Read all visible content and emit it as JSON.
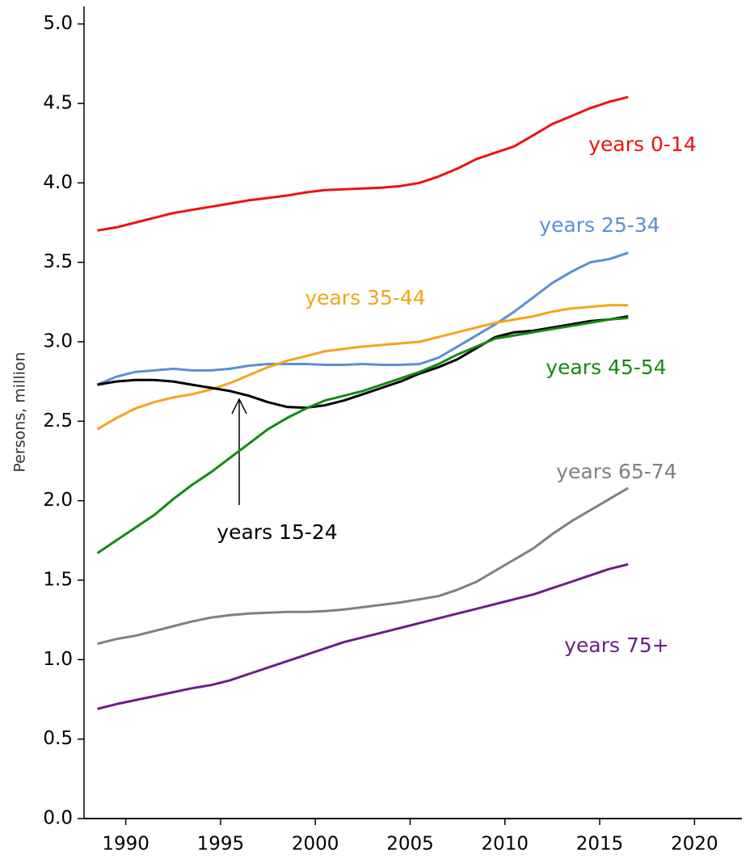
{
  "chart_data": {
    "type": "line",
    "y_label": "Persons, million",
    "x": [
      1988.5,
      1989.5,
      1990.5,
      1991.5,
      1992.5,
      1993.5,
      1994.5,
      1995.5,
      1996.5,
      1997.5,
      1998.5,
      1999.5,
      2000.5,
      2001.5,
      2002.5,
      2003.5,
      2004.5,
      2005.5,
      2006.5,
      2007.5,
      2008.5,
      2009.5,
      2010.5,
      2011.5,
      2012.5,
      2013.5,
      2014.5,
      2015.5,
      2016.5
    ],
    "series": [
      {
        "name": "years 0-14",
        "color": "#ee1111",
        "values": [
          3.7,
          3.72,
          3.75,
          3.78,
          3.81,
          3.83,
          3.85,
          3.87,
          3.89,
          3.905,
          3.92,
          3.94,
          3.955,
          3.96,
          3.965,
          3.97,
          3.98,
          4.0,
          4.04,
          4.09,
          4.15,
          4.19,
          4.23,
          4.3,
          4.37,
          4.42,
          4.47,
          4.51,
          4.54
        ]
      },
      {
        "name": "years 25-34",
        "color": "#5a8fd6",
        "values": [
          2.73,
          2.78,
          2.81,
          2.82,
          2.83,
          2.82,
          2.82,
          2.83,
          2.85,
          2.86,
          2.86,
          2.86,
          2.855,
          2.855,
          2.86,
          2.855,
          2.855,
          2.86,
          2.9,
          2.97,
          3.04,
          3.11,
          3.19,
          3.28,
          3.37,
          3.44,
          3.5,
          3.52,
          3.56
        ]
      },
      {
        "name": "years 35-44",
        "color": "#f5a31a",
        "values": [
          2.45,
          2.52,
          2.58,
          2.62,
          2.65,
          2.67,
          2.7,
          2.74,
          2.79,
          2.84,
          2.88,
          2.91,
          2.94,
          2.955,
          2.97,
          2.98,
          2.99,
          3.0,
          3.03,
          3.06,
          3.09,
          3.12,
          3.14,
          3.16,
          3.19,
          3.21,
          3.22,
          3.23,
          3.23
        ]
      },
      {
        "name": "years 15-24",
        "color": "#000000",
        "values": [
          2.73,
          2.75,
          2.76,
          2.76,
          2.75,
          2.73,
          2.71,
          2.69,
          2.66,
          2.62,
          2.59,
          2.585,
          2.6,
          2.63,
          2.67,
          2.71,
          2.75,
          2.8,
          2.84,
          2.89,
          2.96,
          3.03,
          3.06,
          3.07,
          3.09,
          3.11,
          3.13,
          3.14,
          3.16
        ]
      },
      {
        "name": "years 45-54",
        "color": "#138a13",
        "values": [
          1.67,
          1.75,
          1.83,
          1.91,
          2.01,
          2.1,
          2.18,
          2.27,
          2.36,
          2.45,
          2.52,
          2.58,
          2.63,
          2.66,
          2.69,
          2.73,
          2.77,
          2.81,
          2.86,
          2.92,
          2.97,
          3.02,
          3.04,
          3.06,
          3.08,
          3.1,
          3.12,
          3.14,
          3.15
        ]
      },
      {
        "name": "years 65-74",
        "color": "#808080",
        "values": [
          1.1,
          1.13,
          1.15,
          1.18,
          1.21,
          1.24,
          1.265,
          1.28,
          1.29,
          1.295,
          1.3,
          1.3,
          1.305,
          1.315,
          1.33,
          1.345,
          1.36,
          1.38,
          1.4,
          1.44,
          1.49,
          1.56,
          1.63,
          1.7,
          1.79,
          1.87,
          1.94,
          2.01,
          2.08
        ]
      },
      {
        "name": "years 75+",
        "color": "#6c1f86",
        "values": [
          0.69,
          0.72,
          0.745,
          0.77,
          0.795,
          0.82,
          0.84,
          0.87,
          0.91,
          0.95,
          0.99,
          1.03,
          1.07,
          1.11,
          1.14,
          1.17,
          1.2,
          1.23,
          1.26,
          1.29,
          1.32,
          1.35,
          1.38,
          1.41,
          1.45,
          1.49,
          1.53,
          1.57,
          1.6
        ]
      }
    ],
    "xlim": [
      1987.8,
      2022.5
    ],
    "xticks": [
      1990,
      1995,
      2000,
      2005,
      2010,
      2015,
      2020
    ],
    "ylim": [
      0,
      5.11
    ],
    "yticks": [
      {
        "value": 0,
        "label": "0.0"
      },
      {
        "value": 0.5,
        "label": "0.5"
      },
      {
        "value": 1,
        "label": "1.0"
      },
      {
        "value": 1.5,
        "label": "1.5"
      },
      {
        "value": 2,
        "label": "2.0"
      },
      {
        "value": 2.5,
        "label": "2.5"
      },
      {
        "value": 3,
        "label": "3.0"
      },
      {
        "value": 3.5,
        "label": "3.5"
      },
      {
        "value": 4,
        "label": "4.0"
      },
      {
        "value": 4.5,
        "label": "4.5"
      },
      {
        "value": 5,
        "label": "5.0"
      }
    ]
  }
}
